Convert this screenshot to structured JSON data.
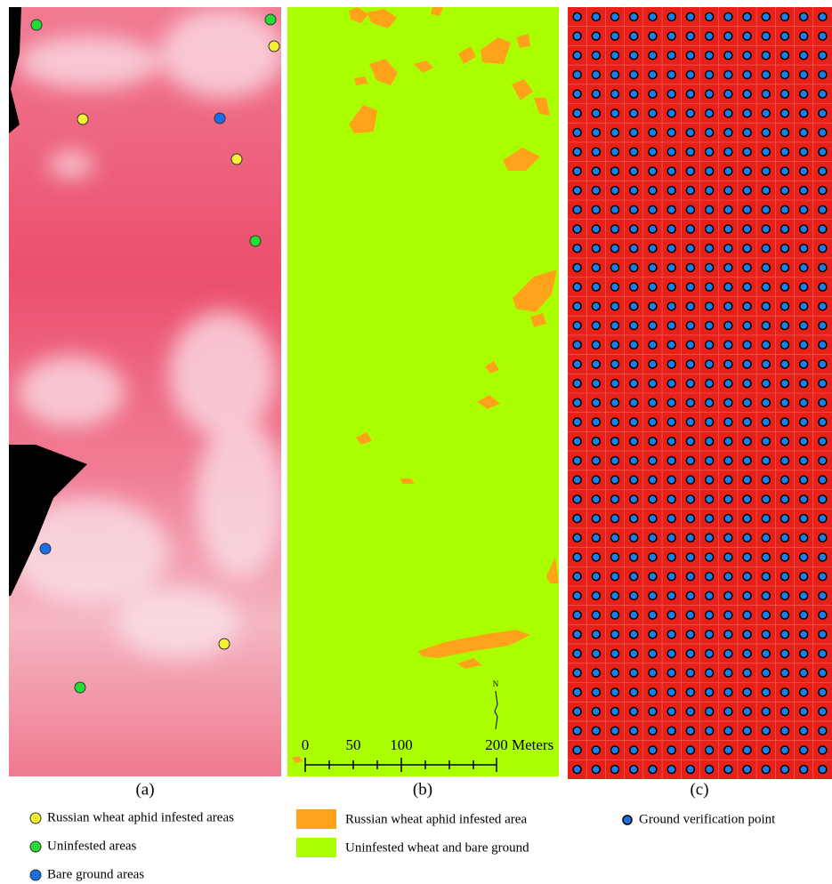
{
  "panels": [
    {
      "label": "(a)"
    },
    {
      "label": "(b)"
    },
    {
      "label": "(c)"
    }
  ],
  "legend_a": [
    "Russian wheat aphid infested areas",
    "Uninfested areas",
    "Bare ground areas"
  ],
  "legend_b": [
    "Russian wheat aphid infested area",
    "Uninfested wheat and bare ground"
  ],
  "legend_c": [
    "Ground verification point"
  ],
  "scale_bar": {
    "labels": [
      "0",
      "50",
      "100",
      "200"
    ],
    "unit": "Meters"
  },
  "north_arrow": "N"
}
